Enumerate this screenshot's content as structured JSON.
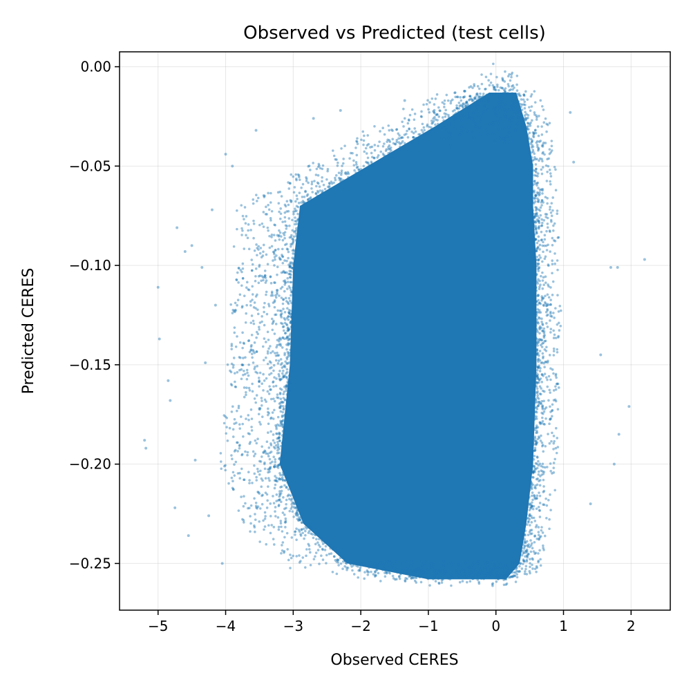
{
  "chart_data": {
    "type": "scatter",
    "title": "Observed vs Predicted (test cells)",
    "xlabel": "Observed CERES",
    "ylabel": "Predicted CERES",
    "xlim": [
      -5.57,
      2.58
    ],
    "ylim": [
      -0.2735,
      0.0075
    ],
    "xticks": [
      -5,
      -4,
      -3,
      -2,
      -1,
      0,
      1,
      2
    ],
    "yticks": [
      0.0,
      -0.05,
      -0.1,
      -0.15,
      -0.2,
      -0.25
    ],
    "xtick_labels": [
      "−5",
      "−4",
      "−3",
      "−2",
      "−1",
      "0",
      "1",
      "2"
    ],
    "ytick_labels": [
      "0.00",
      "−0.05",
      "−0.10",
      "−0.15",
      "−0.20",
      "−0.25"
    ],
    "grid": true,
    "series": [
      {
        "color": "#1f77b4",
        "point_alpha": 0.45,
        "dense_region": {
          "y_range": [
            -0.258,
            -0.01
          ],
          "x_range_at_y": [
            {
              "y": -0.013,
              "x": [
                -0.1,
                0.3
              ]
            },
            {
              "y": -0.03,
              "x": [
                -0.9,
                0.45
              ]
            },
            {
              "y": -0.05,
              "x": [
                -1.9,
                0.55
              ]
            },
            {
              "y": -0.07,
              "x": [
                -2.9,
                0.55
              ]
            },
            {
              "y": -0.1,
              "x": [
                -3.0,
                0.6
              ]
            },
            {
              "y": -0.15,
              "x": [
                -3.05,
                0.6
              ]
            },
            {
              "y": -0.2,
              "x": [
                -3.2,
                0.55
              ]
            },
            {
              "y": -0.23,
              "x": [
                -2.85,
                0.45
              ]
            },
            {
              "y": -0.25,
              "x": [
                -2.2,
                0.35
              ]
            },
            {
              "y": -0.258,
              "x": [
                -1.0,
                0.15
              ]
            }
          ]
        },
        "outliers": [
          [
            -5.2,
            -0.188
          ],
          [
            -5.18,
            -0.192
          ],
          [
            -5.0,
            -0.111
          ],
          [
            -4.98,
            -0.137
          ],
          [
            -4.85,
            -0.158
          ],
          [
            -4.82,
            -0.168
          ],
          [
            -4.75,
            -0.222
          ],
          [
            -4.72,
            -0.081
          ],
          [
            -4.6,
            -0.093
          ],
          [
            -4.55,
            -0.236
          ],
          [
            -4.5,
            -0.09
          ],
          [
            -4.45,
            -0.198
          ],
          [
            -4.35,
            -0.101
          ],
          [
            -4.3,
            -0.149
          ],
          [
            -4.25,
            -0.226
          ],
          [
            -4.2,
            -0.072
          ],
          [
            -4.15,
            -0.12
          ],
          [
            -4.05,
            -0.25
          ],
          [
            -4.0,
            -0.044
          ],
          [
            -3.9,
            -0.05
          ],
          [
            -3.55,
            -0.032
          ],
          [
            -3.5,
            -0.172
          ],
          [
            -2.7,
            -0.026
          ],
          [
            -2.3,
            -0.022
          ],
          [
            -1.35,
            -0.017
          ],
          [
            1.1,
            -0.023
          ],
          [
            1.15,
            -0.048
          ],
          [
            1.7,
            -0.101
          ],
          [
            1.75,
            -0.2
          ],
          [
            1.8,
            -0.101
          ],
          [
            1.82,
            -0.185
          ],
          [
            1.97,
            -0.171
          ],
          [
            2.2,
            -0.097
          ],
          [
            1.55,
            -0.145
          ],
          [
            1.4,
            -0.22
          ]
        ]
      }
    ]
  }
}
